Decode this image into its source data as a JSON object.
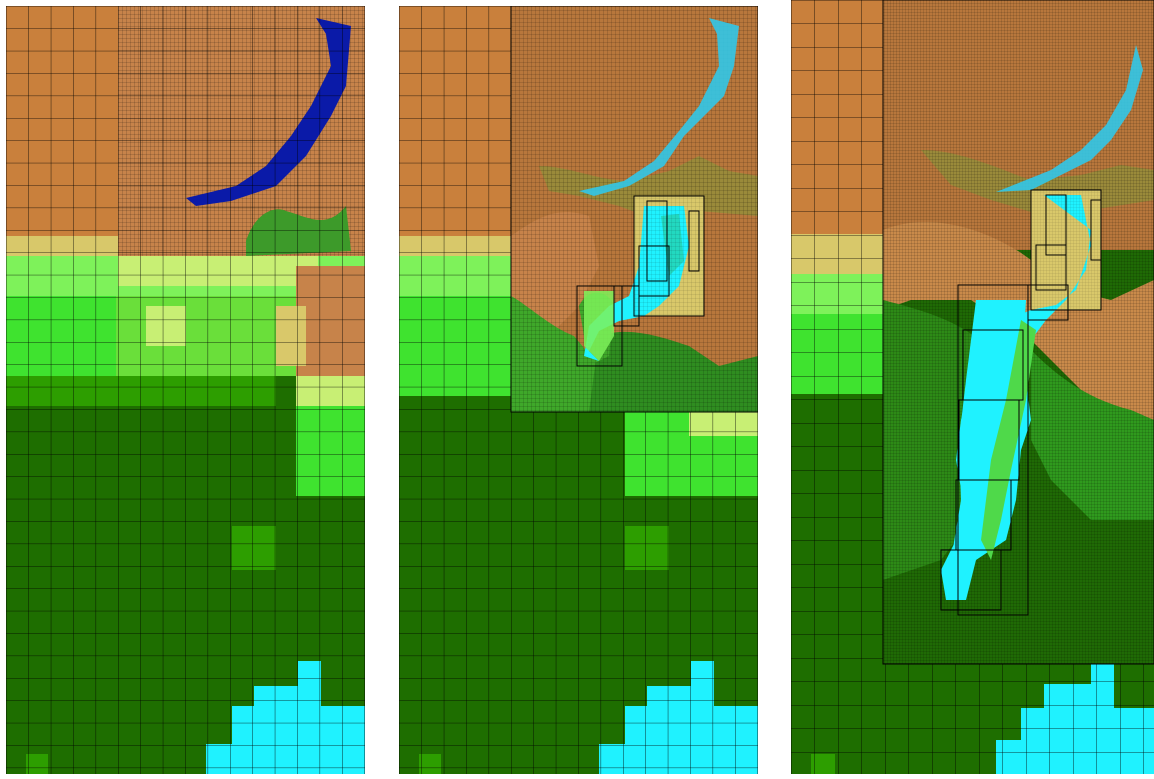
{
  "figure": {
    "panels": [
      {
        "id": "panel-1",
        "description_hidden": true
      },
      {
        "id": "panel-2",
        "description_hidden": true
      },
      {
        "id": "panel-3",
        "description_hidden": true
      }
    ],
    "colors": {
      "deep_green": "#1e6e00",
      "mid_green": "#2d9e00",
      "bright_green": "#3fe32f",
      "light_green": "#7ef25a",
      "yellow_green": "#c8ef74",
      "tan": "#d9c86a",
      "brown": "#c7834a",
      "dark_brown": "#8a5a2a",
      "cyan": "#1ff2ff",
      "blue": "#0a1aa8",
      "grid_line": "#000000"
    }
  }
}
